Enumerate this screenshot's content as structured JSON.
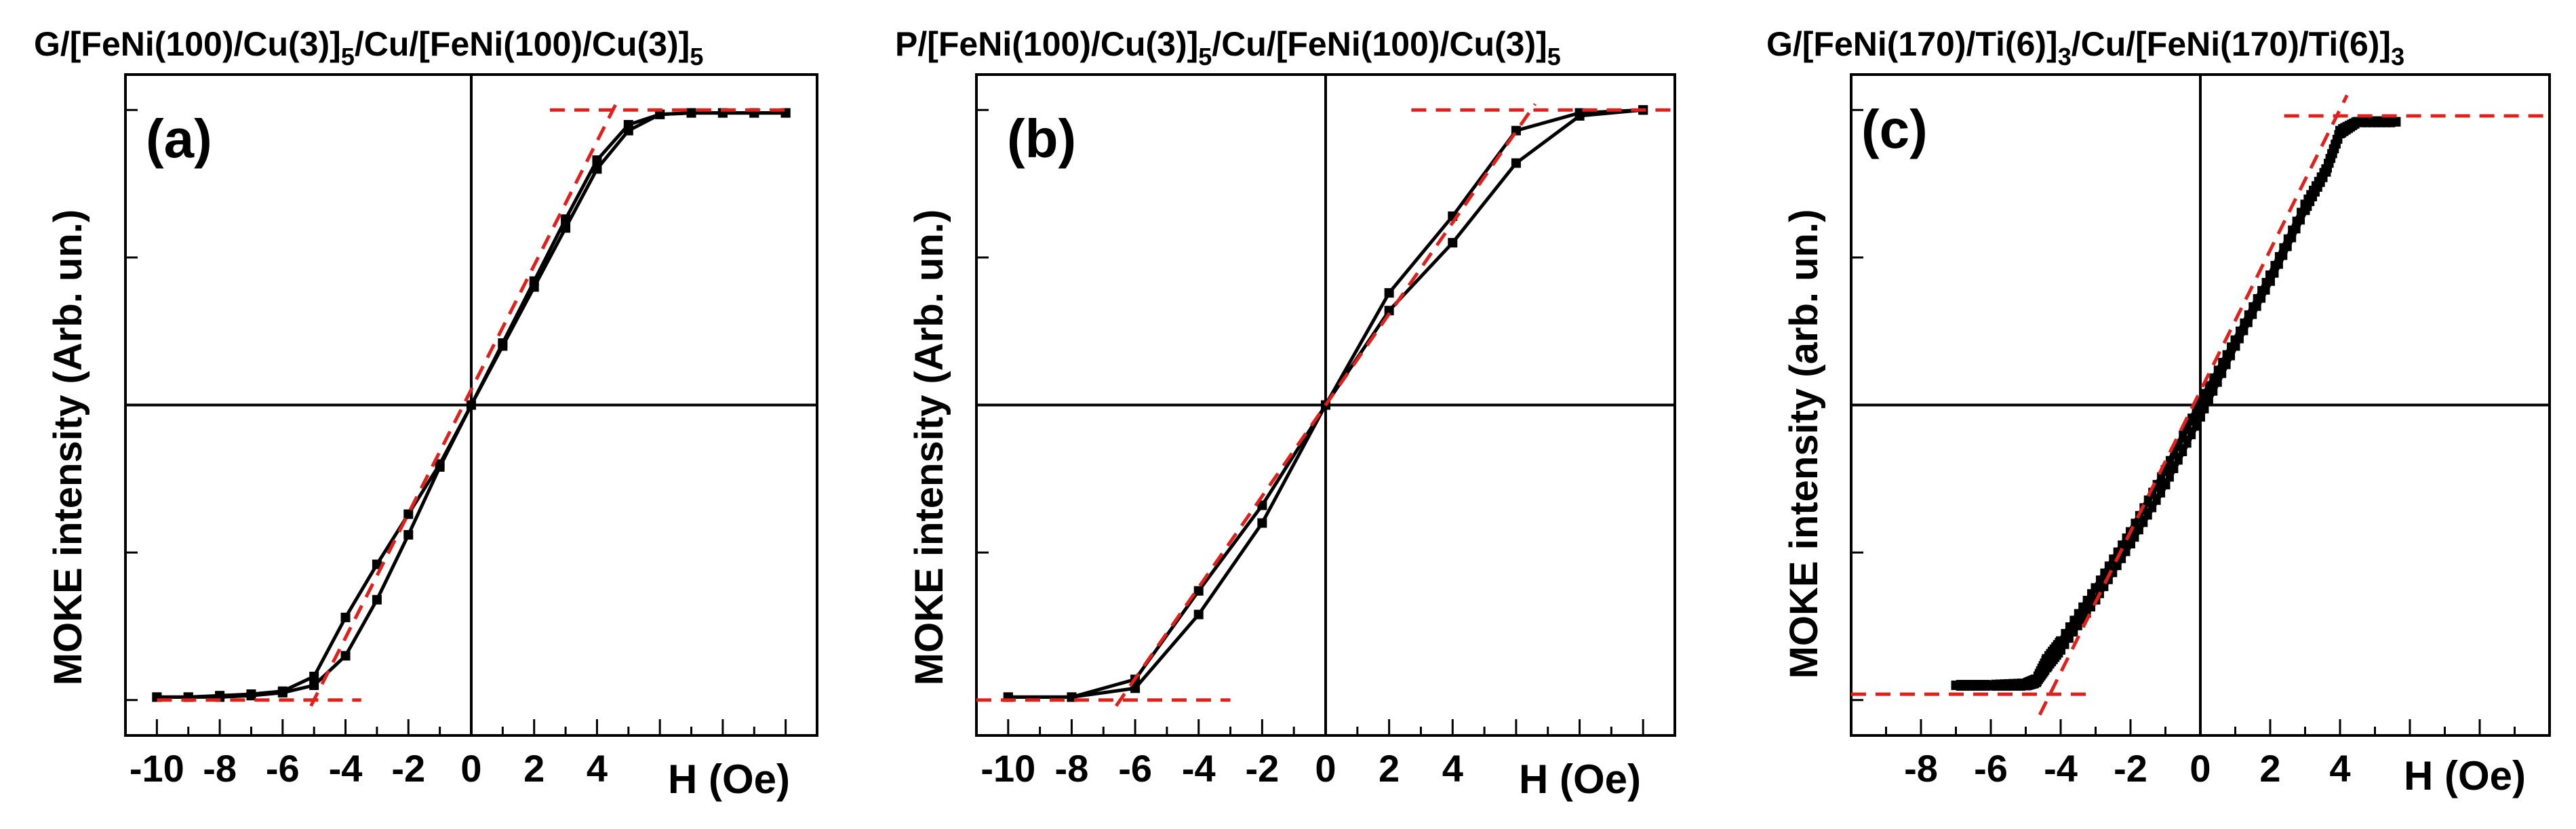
{
  "figure": {
    "colors": {
      "data": "#000000",
      "fit": "#e0201b",
      "axes": "#000000"
    },
    "panels": [
      {
        "title_main": "G/[FeNi(100)/Cu(3)]",
        "title_sub1": "5",
        "title_mid": "/Cu/[FeNi(100)/Cu(3)]",
        "title_sub2": "5",
        "letter": "(a)"
      },
      {
        "title_main": "P/[FeNi(100)/Cu(3)]",
        "title_sub1": "5",
        "title_mid": "/Cu/[FeNi(100)/Cu(3)]",
        "title_sub2": "5",
        "letter": "(b)"
      },
      {
        "title_main": "G/[FeNi(170)/Ti(6)]",
        "title_sub1": "3",
        "title_mid": "/Cu/[FeNi(170)/Ti(6)]",
        "title_sub2": "3",
        "letter": "(c)"
      }
    ]
  },
  "chart_data": [
    {
      "type": "line",
      "title": "G/[FeNi(100)/Cu(3)]5/Cu/[FeNi(100)/Cu(3)]5",
      "panel_label": "(a)",
      "xlabel": "H (Oe)",
      "ylabel": "MOKE intensity (Arb. un.)",
      "xlim": [
        -11,
        11
      ],
      "ylim": [
        -1.12,
        1.12
      ],
      "x_ticks": [
        -10,
        -8,
        -6,
        -4,
        -2,
        0,
        2,
        4
      ],
      "y_ticks": [
        -1,
        -0.5,
        0,
        0.5,
        1
      ],
      "y_ticklabels_shown": false,
      "series": [
        {
          "role": "branch",
          "x": [
            -10,
            -9,
            -8,
            -7,
            -6,
            -5,
            -4,
            -3,
            -2,
            -1,
            0,
            1,
            2,
            3,
            4,
            5,
            6,
            7,
            8,
            9,
            10
          ],
          "y": [
            -0.99,
            -0.99,
            -0.985,
            -0.98,
            -0.97,
            -0.92,
            -0.72,
            -0.54,
            -0.37,
            -0.2,
            0,
            0.2,
            0.4,
            0.6,
            0.8,
            0.93,
            0.985,
            0.99,
            0.99,
            0.99,
            0.99
          ]
        },
        {
          "role": "branch",
          "x": [
            -10,
            -9,
            -8,
            -7,
            -6,
            -5,
            -4,
            -3,
            -2,
            -1,
            0,
            1,
            2,
            3,
            4,
            5,
            6,
            7,
            8,
            9,
            10
          ],
          "y": [
            -0.99,
            -0.99,
            -0.99,
            -0.985,
            -0.975,
            -0.95,
            -0.85,
            -0.66,
            -0.44,
            -0.21,
            0,
            0.21,
            0.42,
            0.63,
            0.83,
            0.95,
            0.985,
            0.99,
            0.99,
            0.99,
            0.99
          ]
        }
      ],
      "fit_lines": [
        {
          "x": [
            -10,
            -3.5
          ],
          "y": [
            -1.0,
            -1.0
          ]
        },
        {
          "x": [
            2.5,
            10
          ],
          "y": [
            1.0,
            1.0
          ]
        },
        {
          "x": [
            -5.1,
            4.6
          ],
          "y": [
            -1.02,
            1.02
          ]
        }
      ]
    },
    {
      "type": "line",
      "title": "P/[FeNi(100)/Cu(3)]5/Cu/[FeNi(100)/Cu(3)]5",
      "panel_label": "(b)",
      "xlabel": "H (Oe)",
      "ylabel": "MOKE intensity (Arb. un.)",
      "xlim": [
        -11,
        11
      ],
      "ylim": [
        -1.12,
        1.12
      ],
      "x_ticks": [
        -10,
        -8,
        -6,
        -4,
        -2,
        0,
        2,
        4
      ],
      "y_ticks": [
        -1,
        -0.5,
        0,
        0.5,
        1
      ],
      "y_ticklabels_shown": false,
      "series": [
        {
          "role": "branch",
          "x": [
            -10,
            -8,
            -6,
            -4,
            -2,
            0,
            2,
            4,
            6,
            8,
            10
          ],
          "y": [
            -0.99,
            -0.99,
            -0.93,
            -0.63,
            -0.34,
            0,
            0.38,
            0.64,
            0.93,
            0.99,
            1.0
          ]
        },
        {
          "role": "branch",
          "x": [
            -10,
            -8,
            -6,
            -4,
            -2,
            0,
            2,
            4,
            6,
            8,
            10
          ],
          "y": [
            -0.99,
            -0.99,
            -0.96,
            -0.71,
            -0.4,
            0,
            0.32,
            0.55,
            0.82,
            0.98,
            1.0
          ]
        }
      ],
      "fit_lines": [
        {
          "x": [
            -11,
            -3.0
          ],
          "y": [
            -1.0,
            -1.0
          ]
        },
        {
          "x": [
            2.7,
            11
          ],
          "y": [
            1.0,
            1.0
          ]
        },
        {
          "x": [
            -6.6,
            6.6
          ],
          "y": [
            -1.02,
            1.02
          ]
        }
      ]
    },
    {
      "type": "line",
      "title": "G/[FeNi(170)/Ti(6)]3/Cu/[FeNi(170)/Ti(6)]3",
      "panel_label": "(c)",
      "xlabel": "H (Oe)",
      "ylabel": "MOKE intensity (arb. un.)",
      "xlim": [
        -10,
        10
      ],
      "ylim": [
        -1.12,
        1.12
      ],
      "x_ticks": [
        -8,
        -6,
        -4,
        -2,
        0,
        2,
        4
      ],
      "y_ticks": [
        -1,
        -0.5,
        0,
        0.5,
        1
      ],
      "y_ticklabels_shown": false,
      "series": [
        {
          "role": "branch",
          "x": [
            -7.0,
            -6.0,
            -5.0,
            -4.7,
            -4.4,
            -4.0,
            -3.0,
            -2.0,
            -1.0,
            0,
            1.0,
            2.0,
            3.0,
            3.6,
            4.0,
            4.5,
            5.6
          ],
          "y": [
            -0.95,
            -0.95,
            -0.945,
            -0.93,
            -0.86,
            -0.8,
            -0.62,
            -0.43,
            -0.22,
            0.01,
            0.22,
            0.44,
            0.68,
            0.8,
            0.93,
            0.96,
            0.96
          ]
        },
        {
          "role": "branch",
          "x": [
            -7.0,
            -6.0,
            -5.0,
            -4.7,
            -4.4,
            -4.0,
            -3.0,
            -2.0,
            -1.0,
            0,
            1.0,
            2.0,
            3.0,
            3.6,
            4.0,
            4.5,
            5.6
          ],
          "y": [
            -0.95,
            -0.95,
            -0.95,
            -0.94,
            -0.89,
            -0.83,
            -0.66,
            -0.47,
            -0.27,
            -0.04,
            0.2,
            0.42,
            0.66,
            0.79,
            0.92,
            0.96,
            0.96
          ]
        }
      ],
      "fit_lines": [
        {
          "x": [
            -10,
            -3.2
          ],
          "y": [
            -0.98,
            -0.98
          ]
        },
        {
          "x": [
            2.4,
            10
          ],
          "y": [
            0.98,
            0.98
          ]
        },
        {
          "x": [
            -4.6,
            4.2
          ],
          "y": [
            -1.05,
            1.05
          ]
        }
      ]
    }
  ]
}
